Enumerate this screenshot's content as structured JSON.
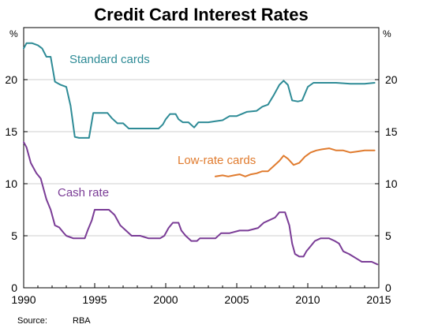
{
  "chart_data": {
    "type": "line",
    "title": "Credit Card Interest Rates",
    "unit_left": "%",
    "unit_right": "%",
    "source_label": "Source:",
    "source_value": "RBA",
    "ylim": [
      0,
      25
    ],
    "xlim": [
      1990,
      2015
    ],
    "y_ticks": [
      0,
      5,
      10,
      15,
      20
    ],
    "x_ticks": [
      1990,
      1995,
      2000,
      2005,
      2010,
      2015
    ],
    "grid": true,
    "colors": {
      "standard": "#2e8b96",
      "lowrate": "#e07b2e",
      "cash": "#7a3c96"
    },
    "series": [
      {
        "key": "standard",
        "name": "Standard cards",
        "points": [
          [
            1990.0,
            23.0
          ],
          [
            1990.2,
            23.5
          ],
          [
            1990.6,
            23.5
          ],
          [
            1991.0,
            23.3
          ],
          [
            1991.3,
            23.0
          ],
          [
            1991.6,
            22.2
          ],
          [
            1991.9,
            22.2
          ],
          [
            1992.2,
            19.8
          ],
          [
            1992.6,
            19.5
          ],
          [
            1993.0,
            19.3
          ],
          [
            1993.3,
            17.5
          ],
          [
            1993.6,
            14.5
          ],
          [
            1993.9,
            14.4
          ],
          [
            1994.3,
            14.4
          ],
          [
            1994.6,
            14.4
          ],
          [
            1994.9,
            16.8
          ],
          [
            1995.3,
            16.8
          ],
          [
            1995.9,
            16.8
          ],
          [
            1996.2,
            16.3
          ],
          [
            1996.6,
            15.8
          ],
          [
            1997.0,
            15.8
          ],
          [
            1997.4,
            15.3
          ],
          [
            1998.0,
            15.3
          ],
          [
            1998.8,
            15.3
          ],
          [
            1999.5,
            15.3
          ],
          [
            1999.8,
            15.7
          ],
          [
            2000.0,
            16.2
          ],
          [
            2000.3,
            16.7
          ],
          [
            2000.7,
            16.7
          ],
          [
            2000.9,
            16.2
          ],
          [
            2001.2,
            15.9
          ],
          [
            2001.6,
            15.9
          ],
          [
            2002.0,
            15.4
          ],
          [
            2002.3,
            15.9
          ],
          [
            2003.0,
            15.9
          ],
          [
            2003.5,
            16.0
          ],
          [
            2004.0,
            16.1
          ],
          [
            2004.5,
            16.5
          ],
          [
            2005.0,
            16.5
          ],
          [
            2005.7,
            16.9
          ],
          [
            2006.4,
            17.0
          ],
          [
            2006.8,
            17.4
          ],
          [
            2007.2,
            17.6
          ],
          [
            2007.6,
            18.5
          ],
          [
            2008.0,
            19.5
          ],
          [
            2008.3,
            19.9
          ],
          [
            2008.6,
            19.5
          ],
          [
            2008.9,
            18.0
          ],
          [
            2009.3,
            17.9
          ],
          [
            2009.6,
            18.0
          ],
          [
            2010.0,
            19.3
          ],
          [
            2010.4,
            19.7
          ],
          [
            2011.0,
            19.7
          ],
          [
            2012.0,
            19.7
          ],
          [
            2013.0,
            19.6
          ],
          [
            2014.0,
            19.6
          ],
          [
            2014.7,
            19.7
          ]
        ]
      },
      {
        "key": "lowrate",
        "name": "Low-rate cards",
        "points": [
          [
            2003.5,
            10.7
          ],
          [
            2004.0,
            10.8
          ],
          [
            2004.4,
            10.7
          ],
          [
            2004.8,
            10.8
          ],
          [
            2005.2,
            10.9
          ],
          [
            2005.6,
            10.7
          ],
          [
            2006.0,
            10.9
          ],
          [
            2006.4,
            11.0
          ],
          [
            2006.8,
            11.2
          ],
          [
            2007.2,
            11.2
          ],
          [
            2007.6,
            11.7
          ],
          [
            2008.0,
            12.2
          ],
          [
            2008.3,
            12.7
          ],
          [
            2008.6,
            12.4
          ],
          [
            2009.0,
            11.8
          ],
          [
            2009.4,
            12.0
          ],
          [
            2009.8,
            12.6
          ],
          [
            2010.2,
            13.0
          ],
          [
            2010.6,
            13.2
          ],
          [
            2011.0,
            13.3
          ],
          [
            2011.5,
            13.4
          ],
          [
            2012.0,
            13.2
          ],
          [
            2012.5,
            13.2
          ],
          [
            2013.0,
            13.0
          ],
          [
            2013.5,
            13.1
          ],
          [
            2014.0,
            13.2
          ],
          [
            2014.7,
            13.2
          ]
        ]
      },
      {
        "key": "cash",
        "name": "Cash rate",
        "points": [
          [
            1990.0,
            14.0
          ],
          [
            1990.2,
            13.5
          ],
          [
            1990.5,
            12.0
          ],
          [
            1990.9,
            11.0
          ],
          [
            1991.2,
            10.5
          ],
          [
            1991.4,
            9.5
          ],
          [
            1991.6,
            8.5
          ],
          [
            1991.9,
            7.5
          ],
          [
            1992.2,
            6.0
          ],
          [
            1992.5,
            5.8
          ],
          [
            1992.8,
            5.3
          ],
          [
            1993.0,
            5.0
          ],
          [
            1993.5,
            4.75
          ],
          [
            1994.0,
            4.75
          ],
          [
            1994.3,
            4.75
          ],
          [
            1994.5,
            5.5
          ],
          [
            1994.8,
            6.5
          ],
          [
            1995.0,
            7.5
          ],
          [
            1995.5,
            7.5
          ],
          [
            1996.0,
            7.5
          ],
          [
            1996.4,
            7.0
          ],
          [
            1996.8,
            6.0
          ],
          [
            1997.2,
            5.5
          ],
          [
            1997.6,
            5.0
          ],
          [
            1998.2,
            5.0
          ],
          [
            1998.8,
            4.75
          ],
          [
            1999.6,
            4.75
          ],
          [
            1999.9,
            5.0
          ],
          [
            2000.2,
            5.75
          ],
          [
            2000.5,
            6.25
          ],
          [
            2000.9,
            6.25
          ],
          [
            2001.1,
            5.5
          ],
          [
            2001.4,
            5.0
          ],
          [
            2001.8,
            4.5
          ],
          [
            2002.2,
            4.5
          ],
          [
            2002.4,
            4.75
          ],
          [
            2003.0,
            4.75
          ],
          [
            2003.5,
            4.75
          ],
          [
            2003.9,
            5.25
          ],
          [
            2004.5,
            5.25
          ],
          [
            2005.2,
            5.5
          ],
          [
            2005.8,
            5.5
          ],
          [
            2006.5,
            5.75
          ],
          [
            2006.9,
            6.25
          ],
          [
            2007.3,
            6.5
          ],
          [
            2007.7,
            6.75
          ],
          [
            2008.0,
            7.25
          ],
          [
            2008.4,
            7.25
          ],
          [
            2008.7,
            6.0
          ],
          [
            2008.9,
            4.25
          ],
          [
            2009.1,
            3.25
          ],
          [
            2009.4,
            3.0
          ],
          [
            2009.7,
            3.0
          ],
          [
            2009.9,
            3.5
          ],
          [
            2010.2,
            4.0
          ],
          [
            2010.5,
            4.5
          ],
          [
            2010.9,
            4.75
          ],
          [
            2011.5,
            4.75
          ],
          [
            2011.9,
            4.5
          ],
          [
            2012.2,
            4.25
          ],
          [
            2012.5,
            3.5
          ],
          [
            2012.9,
            3.25
          ],
          [
            2013.2,
            3.0
          ],
          [
            2013.5,
            2.75
          ],
          [
            2013.8,
            2.5
          ],
          [
            2014.5,
            2.5
          ],
          [
            2014.9,
            2.25
          ]
        ]
      }
    ]
  }
}
